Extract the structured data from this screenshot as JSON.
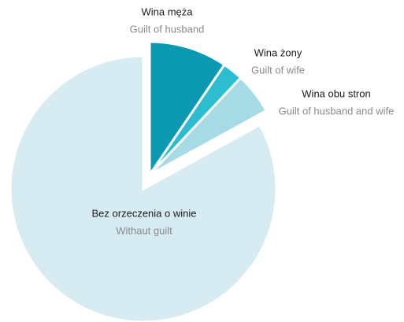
{
  "chart_data": {
    "type": "pie",
    "categories": [
      "Wina męża",
      "Wina żony",
      "Wina obu stron",
      "Bez orzeczenia o winie"
    ],
    "category_subtitles": [
      "Guilt of husband",
      "Guilt of wife",
      "Guilt of husband and wife",
      "Withaut guilt"
    ],
    "values": [
      9.5,
      2.5,
      5,
      83
    ],
    "colors": [
      "#0b98b1",
      "#2dbdd1",
      "#a6dbe6",
      "#d6ecf2"
    ]
  }
}
